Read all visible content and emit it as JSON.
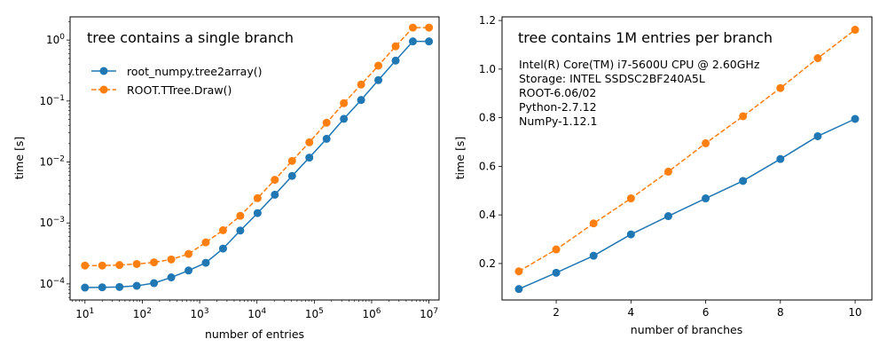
{
  "chart_data": [
    {
      "type": "line",
      "title": "tree contains a single branch",
      "xlabel": "number of entries",
      "ylabel": "time [s]",
      "xscale": "log",
      "yscale": "log",
      "xlim": [
        5.5,
        15000000
      ],
      "ylim": [
        5.45e-05,
        2.4
      ],
      "x_ticks": [
        {
          "value": 10,
          "base": "10",
          "exp": "1"
        },
        {
          "value": 100,
          "base": "10",
          "exp": "2"
        },
        {
          "value": 1000,
          "base": "10",
          "exp": "3"
        },
        {
          "value": 10000,
          "base": "10",
          "exp": "4"
        },
        {
          "value": 100000,
          "base": "10",
          "exp": "5"
        },
        {
          "value": 1000000,
          "base": "10",
          "exp": "6"
        },
        {
          "value": 10000000,
          "base": "10",
          "exp": "7"
        }
      ],
      "y_ticks": [
        {
          "value": 0.0001,
          "base": "10",
          "exp": "−4"
        },
        {
          "value": 0.001,
          "base": "10",
          "exp": "−3"
        },
        {
          "value": 0.01,
          "base": "10",
          "exp": "−2"
        },
        {
          "value": 0.1,
          "base": "10",
          "exp": "−1"
        },
        {
          "value": 1,
          "base": "10",
          "exp": "0"
        }
      ],
      "legend_position": "upper-left",
      "x": [
        10,
        20,
        40,
        80,
        160,
        320,
        640,
        1280,
        2560,
        5120,
        10240,
        20480,
        40960,
        81920,
        163840,
        327680,
        655360,
        1310720,
        2621440,
        5242880,
        10000000
      ],
      "series": [
        {
          "name": "root_numpy.tree2array()",
          "color": "#1f77b4",
          "linestyle": "solid",
          "values": [
            8.7e-05,
            8.8e-05,
            8.9e-05,
            9.3e-05,
            0.000103,
            0.000128,
            0.000166,
            0.000222,
            0.00038,
            0.00075,
            0.00145,
            0.0029,
            0.0059,
            0.0118,
            0.024,
            0.051,
            0.104,
            0.22,
            0.46,
            0.95,
            0.95
          ]
        },
        {
          "name": "ROOT.TTree.Draw()",
          "color": "#ff7f0e",
          "linestyle": "dashed",
          "values": [
            0.0002,
            0.0002,
            0.000204,
            0.000212,
            0.000226,
            0.000252,
            0.00031,
            0.00048,
            0.00076,
            0.00131,
            0.00255,
            0.0051,
            0.0104,
            0.021,
            0.044,
            0.092,
            0.186,
            0.38,
            0.79,
            1.6,
            1.6
          ]
        }
      ]
    },
    {
      "type": "line",
      "title": "tree contains 1M entries per branch",
      "annotation_lines": [
        "Intel(R) Core(TM) i7-5600U CPU @ 2.60GHz",
        "Storage: INTEL SSDSC2BF240A5L",
        "ROOT-6.06/02",
        "Python-2.7.12",
        "NumPy-1.12.1"
      ],
      "xlabel": "number of branches",
      "ylabel": "time [s]",
      "xscale": "linear",
      "yscale": "linear",
      "xlim": [
        0.55,
        10.45
      ],
      "ylim": [
        0.05,
        1.215
      ],
      "x_ticks": [
        "2",
        "4",
        "6",
        "8",
        "10"
      ],
      "x_tick_values": [
        2,
        4,
        6,
        8,
        10
      ],
      "y_ticks": [
        "0.2",
        "0.4",
        "0.6",
        "0.8",
        "1.0",
        "1.2"
      ],
      "y_tick_values": [
        0.2,
        0.4,
        0.6,
        0.8,
        1.0,
        1.2
      ],
      "x": [
        1,
        2,
        3,
        4,
        5,
        6,
        7,
        8,
        9,
        10
      ],
      "series": [
        {
          "name": "root_numpy.tree2array()",
          "color": "#1f77b4",
          "linestyle": "solid",
          "values": [
            0.095,
            0.162,
            0.232,
            0.32,
            0.395,
            0.468,
            0.54,
            0.63,
            0.724,
            0.795
          ]
        },
        {
          "name": "ROOT.TTree.Draw()",
          "color": "#ff7f0e",
          "linestyle": "dashed",
          "values": [
            0.168,
            0.258,
            0.365,
            0.468,
            0.578,
            0.695,
            0.806,
            0.922,
            1.045,
            1.162
          ]
        }
      ]
    }
  ]
}
